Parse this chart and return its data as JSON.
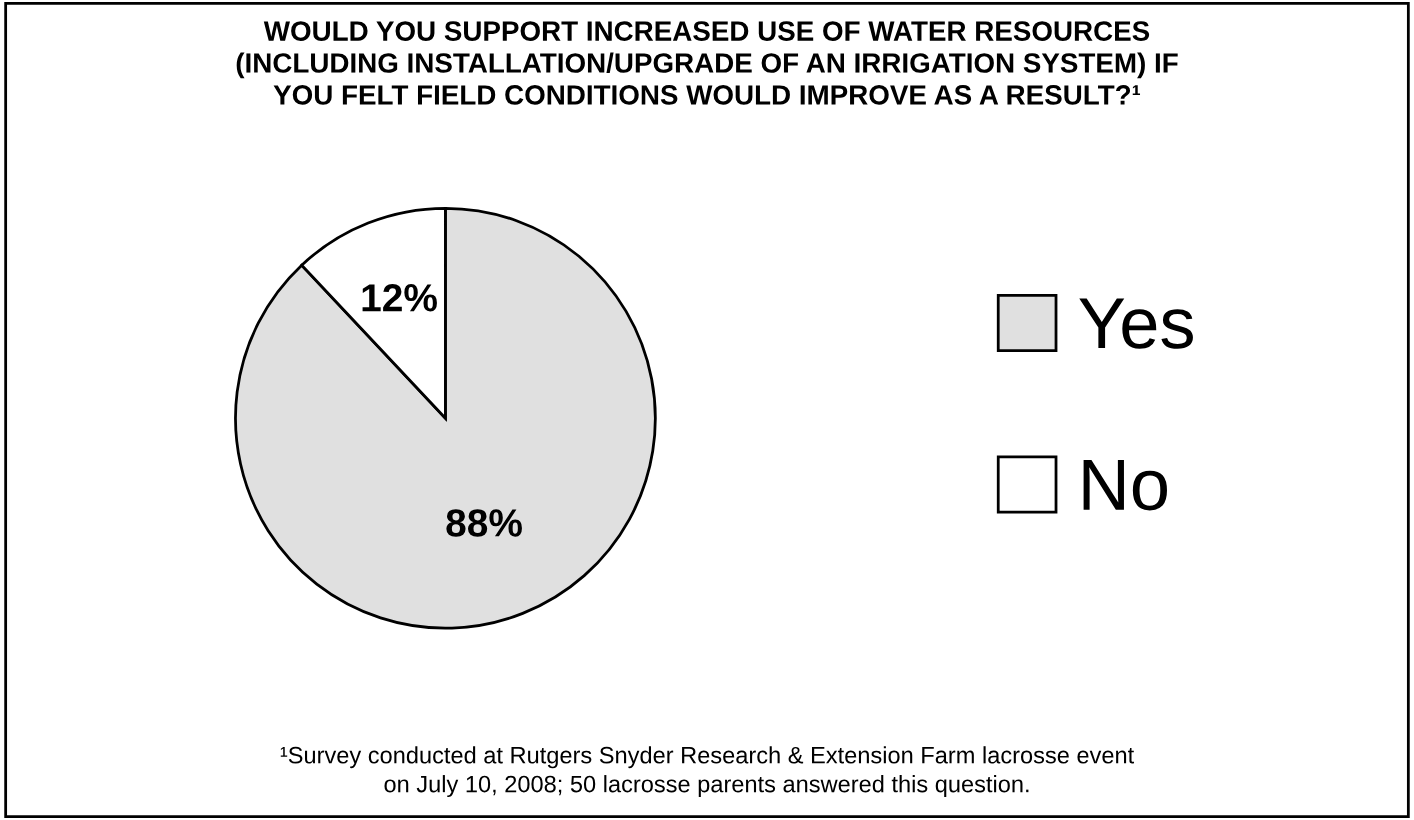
{
  "chart_data": {
    "type": "pie",
    "title": "WOULD YOU SUPPORT INCREASED USE OF WATER RESOURCES\n(INCLUDING INSTALLATION/UPGRADE OF AN IRRIGATION SYSTEM) IF\nYOU FELT FIELD CONDITIONS WOULD IMPROVE AS A RESULT?¹",
    "categories": [
      "Yes",
      "No"
    ],
    "values": [
      88,
      12
    ],
    "colors": [
      "#e0e0e0",
      "#ffffff"
    ],
    "value_labels": [
      "88%",
      "12%"
    ],
    "legend": "right",
    "annotations": [
      "¹Survey conducted at Rutgers Snyder Research & Extension Farm lacrosse event\non July 10, 2008; 50 lacrosse parents answered this question."
    ]
  }
}
